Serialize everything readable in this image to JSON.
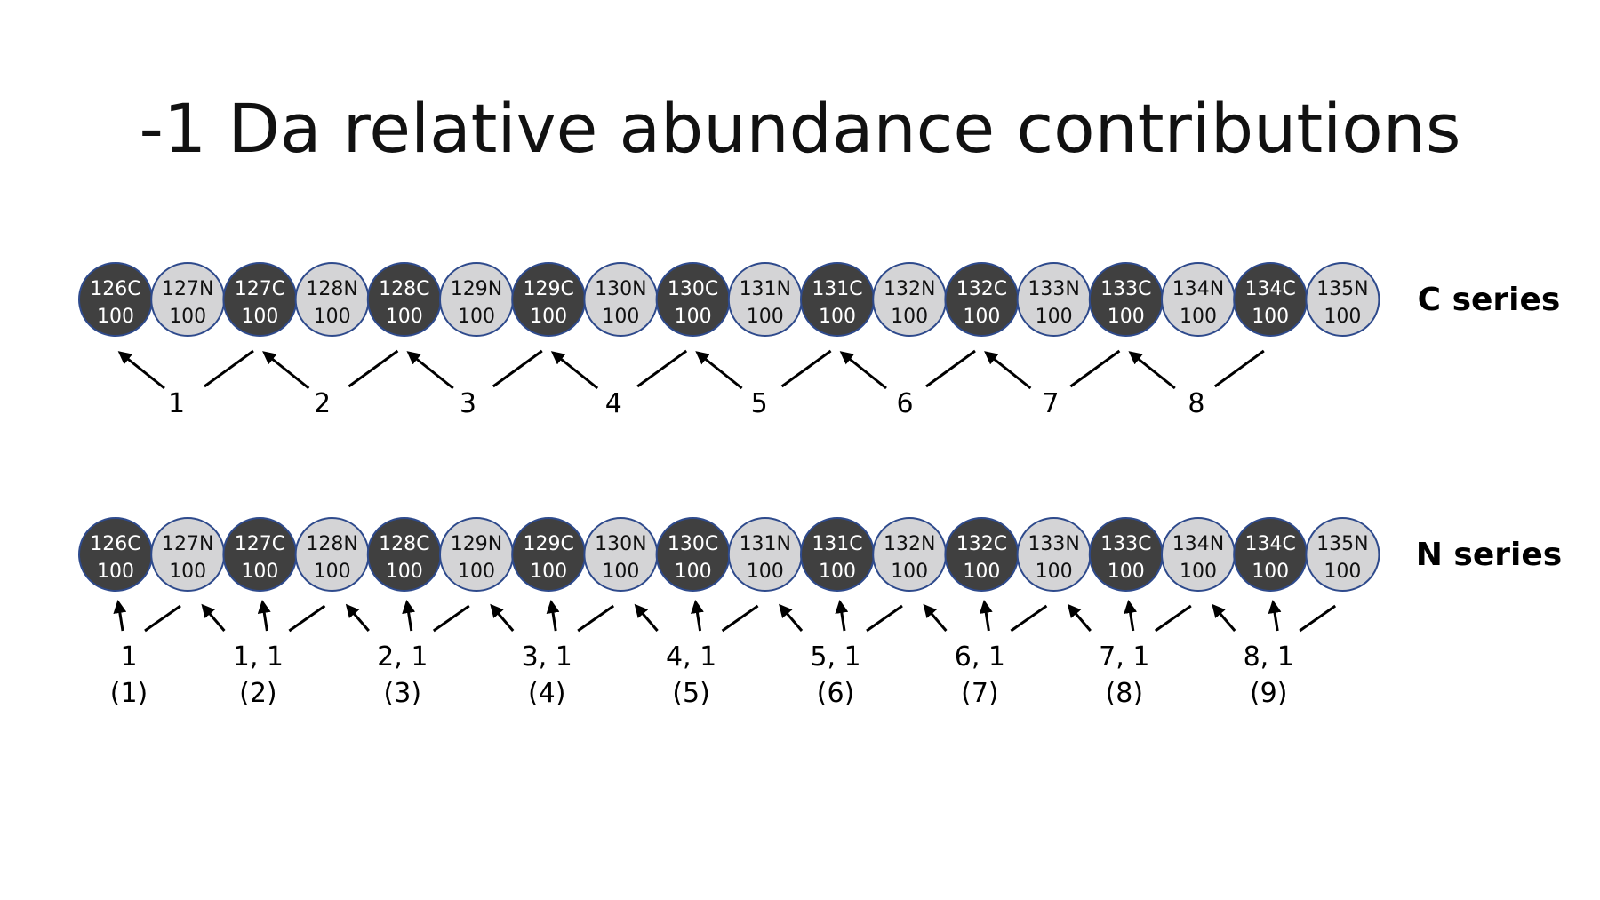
{
  "slide": {
    "title": "-1 Da relative abundance contributions"
  },
  "colors": {
    "c_fill": "#404040",
    "n_fill": "#d4d4d6",
    "outline": "#2e4a8c",
    "c_text": "#ffffff",
    "n_text": "#111111",
    "arrow": "#000000"
  },
  "c_series": {
    "label": "C series",
    "channels": [
      {
        "name": "126C",
        "value": "100",
        "type": "C"
      },
      {
        "name": "127N",
        "value": "100",
        "type": "N"
      },
      {
        "name": "127C",
        "value": "100",
        "type": "C"
      },
      {
        "name": "128N",
        "value": "100",
        "type": "N"
      },
      {
        "name": "128C",
        "value": "100",
        "type": "C"
      },
      {
        "name": "129N",
        "value": "100",
        "type": "N"
      },
      {
        "name": "129C",
        "value": "100",
        "type": "C"
      },
      {
        "name": "130N",
        "value": "100",
        "type": "N"
      },
      {
        "name": "130C",
        "value": "100",
        "type": "C"
      },
      {
        "name": "131N",
        "value": "100",
        "type": "N"
      },
      {
        "name": "131C",
        "value": "100",
        "type": "C"
      },
      {
        "name": "132N",
        "value": "100",
        "type": "N"
      },
      {
        "name": "132C",
        "value": "100",
        "type": "C"
      },
      {
        "name": "133N",
        "value": "100",
        "type": "N"
      },
      {
        "name": "133C",
        "value": "100",
        "type": "C"
      },
      {
        "name": "134N",
        "value": "100",
        "type": "N"
      },
      {
        "name": "134C",
        "value": "100",
        "type": "C"
      },
      {
        "name": "135N",
        "value": "100",
        "type": "N"
      }
    ],
    "contributions": [
      {
        "label": "1"
      },
      {
        "label": "2"
      },
      {
        "label": "3"
      },
      {
        "label": "4"
      },
      {
        "label": "5"
      },
      {
        "label": "6"
      },
      {
        "label": "7"
      },
      {
        "label": "8"
      }
    ]
  },
  "n_series": {
    "label": "N series",
    "channels": [
      {
        "name": "126C",
        "value": "100",
        "type": "C"
      },
      {
        "name": "127N",
        "value": "100",
        "type": "N"
      },
      {
        "name": "127C",
        "value": "100",
        "type": "C"
      },
      {
        "name": "128N",
        "value": "100",
        "type": "N"
      },
      {
        "name": "128C",
        "value": "100",
        "type": "C"
      },
      {
        "name": "129N",
        "value": "100",
        "type": "N"
      },
      {
        "name": "129C",
        "value": "100",
        "type": "C"
      },
      {
        "name": "130N",
        "value": "100",
        "type": "N"
      },
      {
        "name": "130C",
        "value": "100",
        "type": "C"
      },
      {
        "name": "131N",
        "value": "100",
        "type": "N"
      },
      {
        "name": "131C",
        "value": "100",
        "type": "C"
      },
      {
        "name": "132N",
        "value": "100",
        "type": "N"
      },
      {
        "name": "132C",
        "value": "100",
        "type": "C"
      },
      {
        "name": "133N",
        "value": "100",
        "type": "N"
      },
      {
        "name": "133C",
        "value": "100",
        "type": "C"
      },
      {
        "name": "134N",
        "value": "100",
        "type": "N"
      },
      {
        "name": "134C",
        "value": "100",
        "type": "C"
      },
      {
        "name": "135N",
        "value": "100",
        "type": "N"
      }
    ],
    "contributions": [
      {
        "line1": "1",
        "line2": "(1)"
      },
      {
        "line1": "1, 1",
        "line2": "(2)"
      },
      {
        "line1": "2, 1",
        "line2": "(3)"
      },
      {
        "line1": "3, 1",
        "line2": "(4)"
      },
      {
        "line1": "4, 1",
        "line2": "(5)"
      },
      {
        "line1": "5, 1",
        "line2": "(6)"
      },
      {
        "line1": "6, 1",
        "line2": "(7)"
      },
      {
        "line1": "7, 1",
        "line2": "(8)"
      },
      {
        "line1": "8, 1",
        "line2": "(9)"
      }
    ]
  }
}
